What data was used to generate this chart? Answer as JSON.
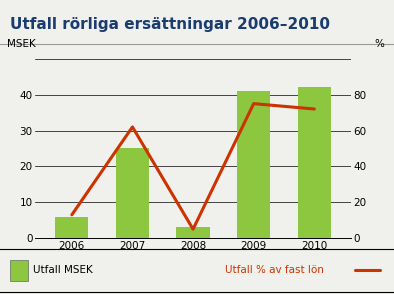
{
  "title": "Utfall rörliga ersättningar 2006–2010",
  "years": [
    2006,
    2007,
    2008,
    2009,
    2010
  ],
  "bar_values": [
    6,
    25,
    3,
    41,
    42
  ],
  "line_values": [
    13,
    62,
    5,
    75,
    72
  ],
  "bar_color": "#8dc63f",
  "line_color": "#cc3300",
  "left_ylabel": "MSEK",
  "right_ylabel": "%",
  "left_ylim": [
    0,
    50
  ],
  "right_ylim": [
    0,
    100
  ],
  "left_yticks": [
    0,
    10,
    20,
    30,
    40
  ],
  "right_yticks": [
    0,
    20,
    40,
    60,
    80
  ],
  "bg_color": "#f0f0ec",
  "title_color": "#1a3c6e",
  "legend_bar_label": "Utfall MSEK",
  "legend_line_label": "Utfall % av fast lön",
  "title_fontsize": 11,
  "axis_fontsize": 7.5,
  "tick_fontsize": 7.5,
  "topbar_color": "#8a8a8a"
}
